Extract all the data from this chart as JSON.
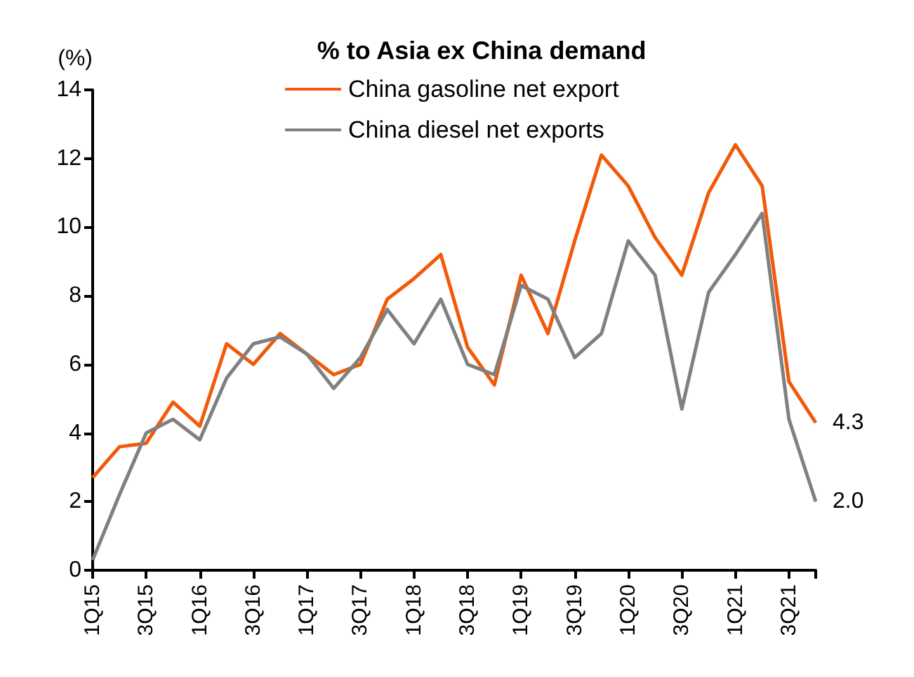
{
  "chart_data": {
    "type": "line",
    "title": "% to Asia ex China demand",
    "ylabel": "(%)",
    "categories": [
      "1Q15",
      null,
      "3Q15",
      null,
      "1Q16",
      null,
      "3Q16",
      null,
      "1Q17",
      null,
      "3Q17",
      null,
      "1Q18",
      null,
      "3Q18",
      null,
      "1Q19",
      null,
      "3Q19",
      null,
      "1Q20",
      null,
      "3Q20",
      null,
      "1Q21",
      null,
      "3Q21",
      null
    ],
    "series": [
      {
        "name": "China gasoline net export",
        "color": "#f05a0a",
        "values": [
          2.7,
          3.6,
          3.7,
          4.9,
          4.2,
          6.6,
          6.0,
          6.9,
          6.3,
          5.7,
          6.0,
          7.9,
          8.5,
          9.2,
          6.5,
          5.4,
          8.6,
          6.9,
          9.6,
          12.1,
          11.2,
          9.7,
          8.6,
          11.0,
          12.4,
          11.2,
          5.5,
          4.3
        ],
        "value_labels": [
          null,
          null,
          null,
          null,
          null,
          null,
          null,
          null,
          null,
          null,
          null,
          null,
          null,
          null,
          null,
          null,
          null,
          null,
          null,
          null,
          null,
          null,
          null,
          null,
          null,
          null,
          null,
          "4.3"
        ]
      },
      {
        "name": "China diesel net exports",
        "color": "#808080",
        "values": [
          0.3,
          2.2,
          4.0,
          4.4,
          3.8,
          5.6,
          6.6,
          6.8,
          6.3,
          5.3,
          6.2,
          7.6,
          6.6,
          7.9,
          6.0,
          5.7,
          8.3,
          7.9,
          6.2,
          6.9,
          9.6,
          8.6,
          4.7,
          8.1,
          9.2,
          10.4,
          4.4,
          2.0
        ],
        "value_labels": [
          null,
          null,
          null,
          null,
          null,
          null,
          null,
          null,
          null,
          null,
          null,
          null,
          null,
          null,
          null,
          null,
          null,
          null,
          null,
          null,
          null,
          null,
          null,
          null,
          null,
          null,
          null,
          "2.0"
        ]
      }
    ],
    "ylim": [
      0,
      14
    ],
    "yticks": [
      0,
      2,
      4,
      6,
      8,
      10,
      12,
      14
    ],
    "grid": false,
    "legend": "top",
    "marker": "none",
    "line_style": "solid"
  }
}
